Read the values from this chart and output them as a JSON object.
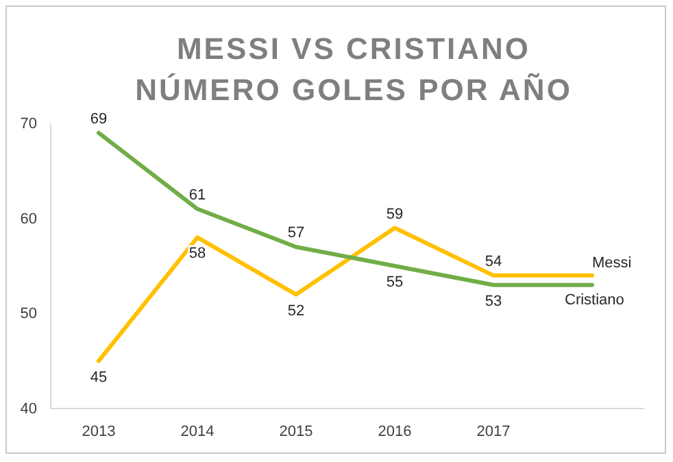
{
  "chart_data": {
    "type": "line",
    "title": "MESSI VS CRISTIANO\nNÚMERO GOLES POR AÑO",
    "categories": [
      "2013",
      "2014",
      "2015",
      "2016",
      "2017",
      null
    ],
    "series": [
      {
        "name": "Messi",
        "color": "#ffc000",
        "values": [
          45,
          58,
          52,
          59,
          54,
          54
        ],
        "value_labels": [
          "45",
          "58",
          "52",
          "59",
          "54",
          null
        ]
      },
      {
        "name": "Cristiano",
        "color": "#70ad47",
        "values": [
          69,
          61,
          57,
          55,
          53,
          53
        ],
        "value_labels": [
          "69",
          "61",
          "57",
          "55",
          "53",
          null
        ]
      }
    ],
    "ylim": [
      40,
      70
    ],
    "yticks": [
      40,
      50,
      60,
      70
    ],
    "grid": false,
    "marker": "none",
    "line_style": "solid"
  }
}
